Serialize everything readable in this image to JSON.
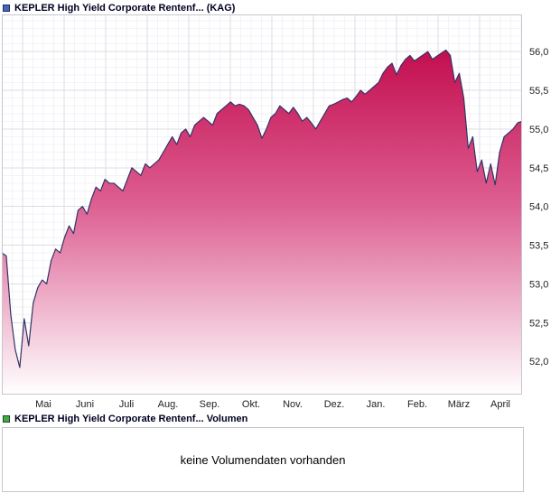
{
  "price_chart": {
    "legend_label": "KEPLER High Yield Corporate Rentenf... (KAG)",
    "legend_color": "#4466bb"
  },
  "volume_panel": {
    "legend_label": "KEPLER High Yield Corporate Rentenf... Volumen",
    "legend_color": "#44aa44",
    "message": "keine Volumendaten vorhanden"
  },
  "chart_data": {
    "type": "area",
    "title": "KEPLER High Yield Corporate Rentenf... (KAG)",
    "xlabel": "",
    "ylabel": "",
    "legend_position": "top-left",
    "grid": true,
    "x_tick_labels": [
      "Mai",
      "Juni",
      "Juli",
      "Aug.",
      "Sep.",
      "Okt.",
      "Nov.",
      "Dez.",
      "Jan.",
      "Feb.",
      "März",
      "April"
    ],
    "y_ticks": [
      {
        "value": 56.0,
        "label": "56,0"
      },
      {
        "value": 55.5,
        "label": "55,5"
      },
      {
        "value": 55.0,
        "label": "55,0"
      },
      {
        "value": 54.5,
        "label": "54,5"
      },
      {
        "value": 54.0,
        "label": "54,0"
      },
      {
        "value": 53.5,
        "label": "53,5"
      },
      {
        "value": 53.0,
        "label": "53,0"
      },
      {
        "value": 52.5,
        "label": "52,5"
      },
      {
        "value": 52.0,
        "label": "52,0"
      }
    ],
    "ylim": [
      51.57,
      56.48
    ],
    "values": [
      53.4,
      53.36,
      52.6,
      52.15,
      51.92,
      52.55,
      52.2,
      52.75,
      52.95,
      53.05,
      53.0,
      53.3,
      53.45,
      53.4,
      53.6,
      53.75,
      53.65,
      53.95,
      54.0,
      53.9,
      54.1,
      54.25,
      54.2,
      54.35,
      54.3,
      54.3,
      54.25,
      54.2,
      54.35,
      54.5,
      54.45,
      54.4,
      54.55,
      54.5,
      54.55,
      54.6,
      54.7,
      54.8,
      54.9,
      54.8,
      54.95,
      55.0,
      54.9,
      55.05,
      55.1,
      55.15,
      55.1,
      55.05,
      55.2,
      55.25,
      55.3,
      55.35,
      55.3,
      55.32,
      55.3,
      55.25,
      55.15,
      55.05,
      54.88,
      55.0,
      55.15,
      55.2,
      55.3,
      55.25,
      55.2,
      55.28,
      55.2,
      55.1,
      55.15,
      55.08,
      55.0,
      55.1,
      55.2,
      55.3,
      55.32,
      55.35,
      55.38,
      55.4,
      55.35,
      55.42,
      55.5,
      55.45,
      55.5,
      55.55,
      55.6,
      55.72,
      55.8,
      55.85,
      55.7,
      55.82,
      55.9,
      55.95,
      55.88,
      55.92,
      55.96,
      56.0,
      55.9,
      55.94,
      55.98,
      56.02,
      55.95,
      55.6,
      55.72,
      55.4,
      54.75,
      54.9,
      54.45,
      54.6,
      54.3,
      54.55,
      54.28,
      54.7,
      54.9,
      54.95,
      55.0,
      55.08,
      55.1
    ],
    "line_color": "#333366",
    "fill_gradient": [
      "#c30e4e",
      "#dd5f92",
      "#ffffff"
    ],
    "major_grid_color": "#dcdce6",
    "minor_grid_color": "#f3f3f8",
    "axis_label_color": "#222222",
    "plot_border_color": "#c6c6d0"
  }
}
